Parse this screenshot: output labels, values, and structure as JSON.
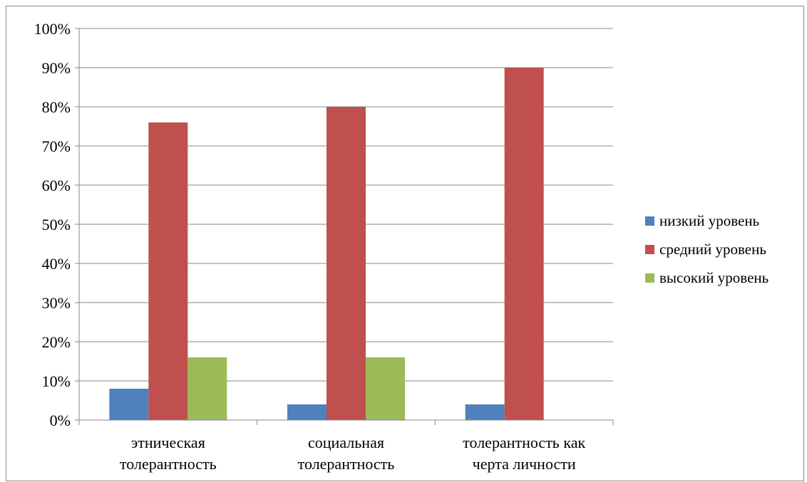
{
  "chart_data": {
    "type": "bar",
    "categories": [
      [
        "этническая",
        "толерантность"
      ],
      [
        "социальная",
        "толерантность"
      ],
      [
        "толерантность как",
        "черта личности"
      ]
    ],
    "series": [
      {
        "name": "низкий уровень",
        "color": "#4f81bd",
        "values": [
          8,
          4,
          4
        ]
      },
      {
        "name": "средний уровень",
        "color": "#c0504d",
        "values": [
          76,
          80,
          90
        ]
      },
      {
        "name": "высокий уровень",
        "color": "#9bbb59",
        "values": [
          16,
          16,
          0
        ]
      }
    ],
    "ylim": [
      0,
      100
    ],
    "yticks": [
      "0%",
      "10%",
      "20%",
      "30%",
      "40%",
      "50%",
      "60%",
      "70%",
      "80%",
      "90%",
      "100%"
    ],
    "grid": true,
    "legend_position": "right"
  }
}
